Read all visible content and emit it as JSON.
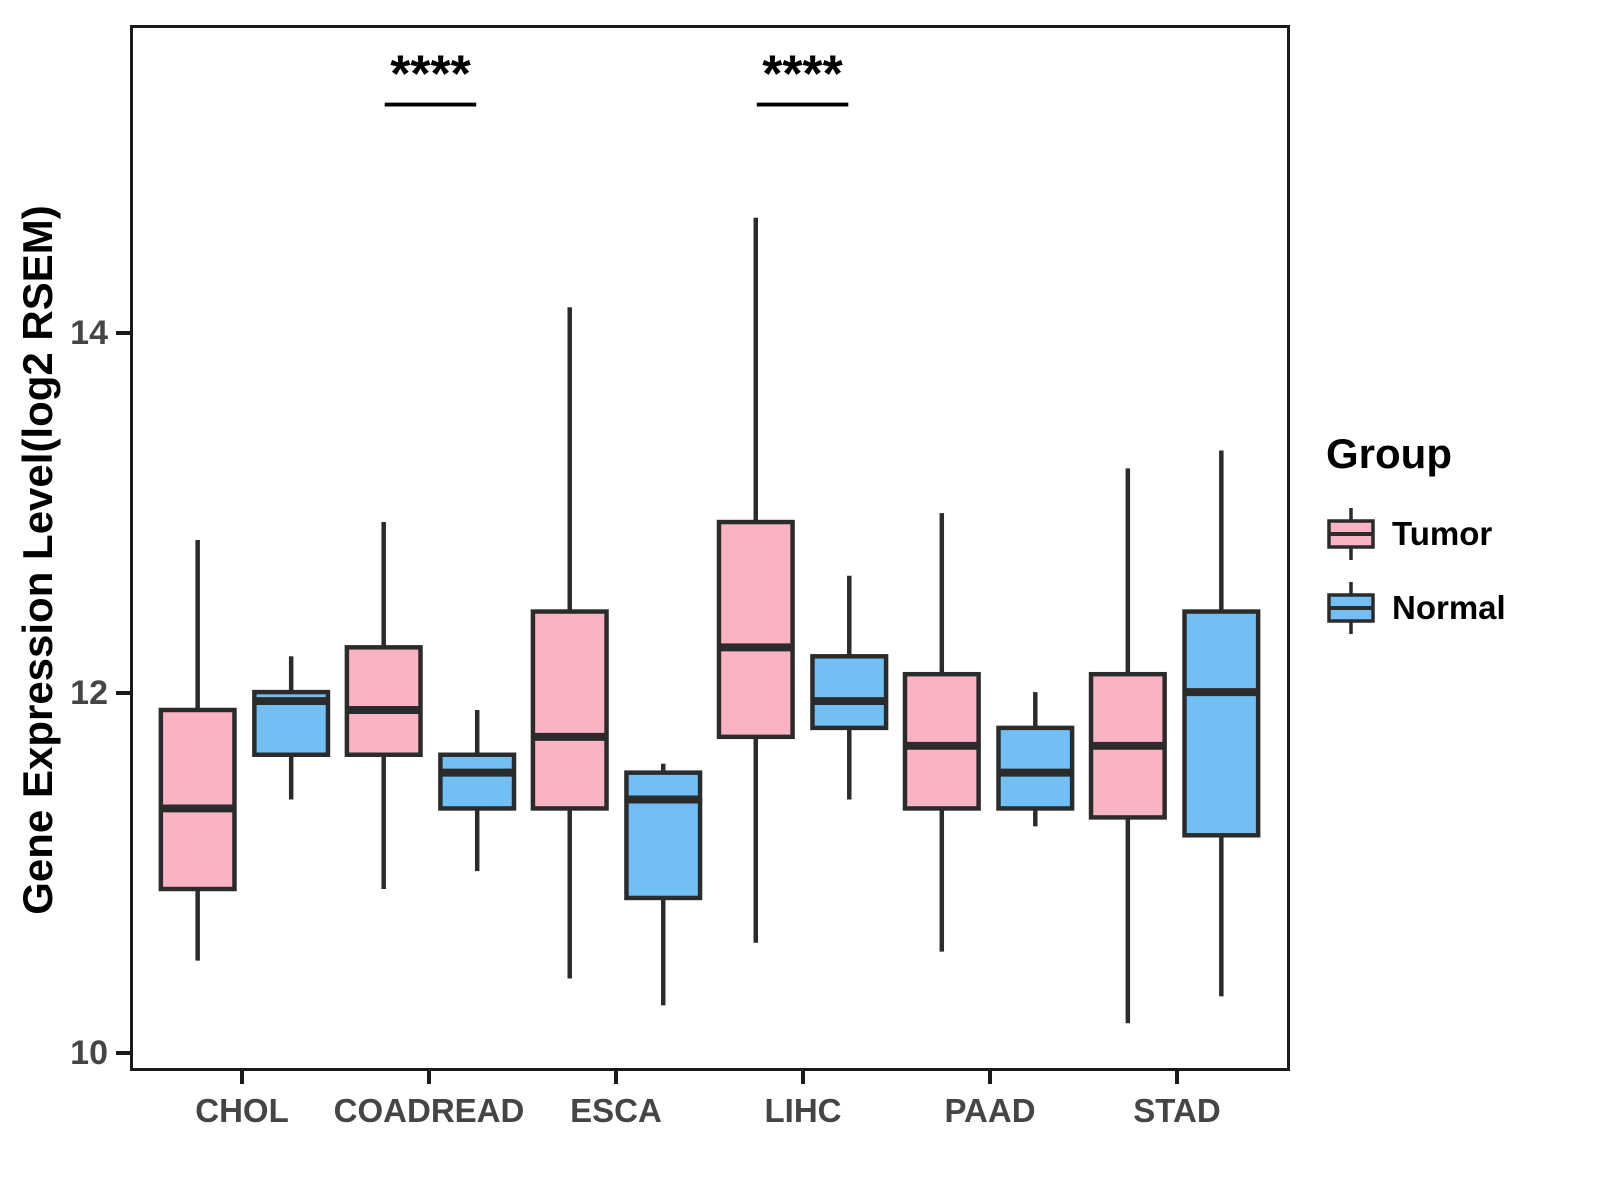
{
  "chart_data": {
    "type": "boxplot",
    "title": "",
    "xlabel": "",
    "ylabel": "Gene Expression Level(log2 RSEM)",
    "legend_title": "Group",
    "legend_position": "right",
    "grid": false,
    "categories": [
      "CHOL",
      "COADREAD",
      "ESCA",
      "LIHC",
      "PAAD",
      "STAD"
    ],
    "yticks": [
      10,
      12,
      14
    ],
    "ylim": [
      9.9,
      15.71
    ],
    "groups": [
      {
        "name": "Tumor",
        "fill": "#F9B3C2"
      },
      {
        "name": "Normal",
        "fill": "#71BFF4"
      }
    ],
    "series": [
      {
        "name": "Tumor",
        "boxes": [
          {
            "category": "CHOL",
            "whisker_low": 10.5,
            "q1": 10.9,
            "median": 11.35,
            "q3": 11.9,
            "whisker_high": 12.85
          },
          {
            "category": "COADREAD",
            "whisker_low": 10.9,
            "q1": 11.65,
            "median": 11.9,
            "q3": 12.25,
            "whisker_high": 12.95
          },
          {
            "category": "ESCA",
            "whisker_low": 10.4,
            "q1": 11.35,
            "median": 11.75,
            "q3": 12.45,
            "whisker_high": 14.15
          },
          {
            "category": "LIHC",
            "whisker_low": 10.6,
            "q1": 11.75,
            "median": 12.25,
            "q3": 12.95,
            "whisker_high": 14.65
          },
          {
            "category": "PAAD",
            "whisker_low": 10.55,
            "q1": 11.35,
            "median": 11.7,
            "q3": 12.1,
            "whisker_high": 13.0
          },
          {
            "category": "STAD",
            "whisker_low": 10.15,
            "q1": 11.3,
            "median": 11.7,
            "q3": 12.1,
            "whisker_high": 13.25
          }
        ]
      },
      {
        "name": "Normal",
        "boxes": [
          {
            "category": "CHOL",
            "whisker_low": 11.4,
            "q1": 11.65,
            "median": 11.95,
            "q3": 12.0,
            "whisker_high": 12.2
          },
          {
            "category": "COADREAD",
            "whisker_low": 11.0,
            "q1": 11.35,
            "median": 11.55,
            "q3": 11.65,
            "whisker_high": 11.9
          },
          {
            "category": "ESCA",
            "whisker_low": 10.25,
            "q1": 10.85,
            "median": 11.4,
            "q3": 11.55,
            "whisker_high": 11.6
          },
          {
            "category": "LIHC",
            "whisker_low": 11.4,
            "q1": 11.8,
            "median": 11.95,
            "q3": 12.2,
            "whisker_high": 12.65
          },
          {
            "category": "PAAD",
            "whisker_low": 11.25,
            "q1": 11.35,
            "median": 11.55,
            "q3": 11.8,
            "whisker_high": 12.0
          },
          {
            "category": "STAD",
            "whisker_low": 10.3,
            "q1": 11.2,
            "median": 12.0,
            "q3": 12.45,
            "whisker_high": 13.35
          }
        ]
      }
    ],
    "significance": [
      {
        "category": "COADREAD",
        "label": "****"
      },
      {
        "category": "LIHC",
        "label": "****"
      }
    ],
    "colors": {
      "box_outline": "#2b2b2b",
      "panel_border": "#1a1a1a",
      "axis_text": "#454545",
      "annotation": "#000000"
    }
  }
}
